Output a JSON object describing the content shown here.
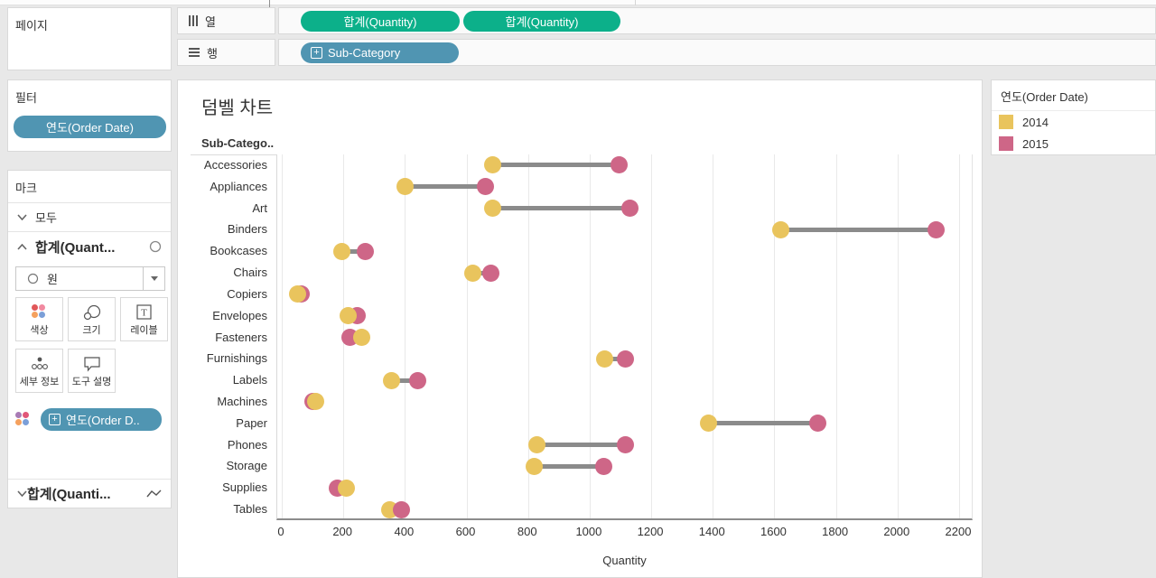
{
  "ui_colors": {
    "pill_green": "#0CB08A",
    "pill_blue": "#5095B2",
    "background": "#E8E8E8"
  },
  "pages_card": {
    "title": "페이지"
  },
  "filters_card": {
    "title": "필터",
    "pill": "연도(Order Date)"
  },
  "marks_card": {
    "title": "마크",
    "all_row": "모두",
    "sum_row": "합계(Quant...",
    "mark_type": "원",
    "buttons": {
      "color": "색상",
      "size": "크기",
      "label": "레이블",
      "detail": "세부 정보",
      "tooltip": "도구 설명"
    },
    "color_pill": "연도(Order D..",
    "bottom_row": "합계(Quanti..."
  },
  "shelves": {
    "columns_label": "열",
    "rows_label": "행",
    "columns_pills": [
      "합계(Quantity)",
      "합계(Quantity)"
    ],
    "rows_pill": "Sub-Category"
  },
  "legend": {
    "title": "연도(Order Date)",
    "items": [
      {
        "label": "2014",
        "color": "#E9C45D"
      },
      {
        "label": "2015",
        "color": "#CE6687"
      }
    ]
  },
  "chart_data": {
    "type": "scatter",
    "subtype": "dumbbell",
    "title": "덤벨 차트",
    "row_header": "Sub-Catego..",
    "xlabel": "Quantity",
    "x_axis": {
      "min": 0,
      "max": 2200,
      "step": 200
    },
    "grid": "vertical-only",
    "legend_position": "top-right",
    "series_names": [
      "2014",
      "2015"
    ],
    "colors": {
      "2014": "#E9C45D",
      "2015": "#CE6687",
      "connector": "#8B8B8B"
    },
    "rows": [
      {
        "category": "Accessories",
        "v2014": 685,
        "v2015": 1095,
        "front": "2015"
      },
      {
        "category": "Appliances",
        "v2014": 400,
        "v2015": 660,
        "front": "2015"
      },
      {
        "category": "Art",
        "v2014": 685,
        "v2015": 1130,
        "front": "2015"
      },
      {
        "category": "Binders",
        "v2014": 1620,
        "v2015": 2125,
        "front": "2015"
      },
      {
        "category": "Bookcases",
        "v2014": 195,
        "v2015": 270,
        "front": "2015"
      },
      {
        "category": "Chairs",
        "v2014": 620,
        "v2015": 680,
        "front": "2015"
      },
      {
        "category": "Copiers",
        "v2014": 50,
        "v2015": 62,
        "front": "2014"
      },
      {
        "category": "Envelopes",
        "v2014": 215,
        "v2015": 245,
        "front": "2014"
      },
      {
        "category": "Fasteners",
        "v2014": 260,
        "v2015": 220,
        "front": "2014"
      },
      {
        "category": "Furnishings",
        "v2014": 1050,
        "v2015": 1115,
        "front": "2015"
      },
      {
        "category": "Labels",
        "v2014": 355,
        "v2015": 440,
        "front": "2015"
      },
      {
        "category": "Machines",
        "v2014": 110,
        "v2015": 100,
        "front": "2014"
      },
      {
        "category": "Paper",
        "v2014": 1385,
        "v2015": 1740,
        "front": "2015"
      },
      {
        "category": "Phones",
        "v2014": 830,
        "v2015": 1115,
        "front": "2015"
      },
      {
        "category": "Storage",
        "v2014": 820,
        "v2015": 1045,
        "front": "2015"
      },
      {
        "category": "Supplies",
        "v2014": 210,
        "v2015": 180,
        "front": "2014"
      },
      {
        "category": "Tables",
        "v2014": 350,
        "v2015": 390,
        "front": "2015"
      }
    ]
  }
}
